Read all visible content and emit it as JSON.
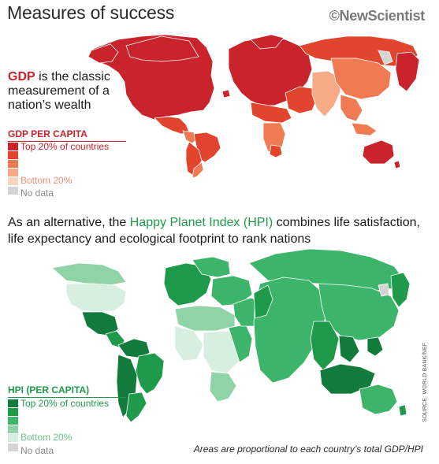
{
  "title": "Measures of success",
  "brand": "©NewScientist",
  "gdp_intro": {
    "highlight": "GDP",
    "text": " is the classic measurement of a nation’s wealth"
  },
  "gdp_legend": {
    "title": "GDP PER CAPITA",
    "top_label": "Top 20% of countries",
    "bottom_label": "Bottom 20%",
    "nodata_label": "No data",
    "colors": [
      "#c9232b",
      "#e2452d",
      "#f07a52",
      "#f7aa86",
      "#fbd5c2"
    ],
    "nodata_color": "#d5d5d5"
  },
  "hpi_intro": {
    "before": "As an alternative, the ",
    "highlight": "Happy Planet Index (HPI)",
    "after": " combines life satisfaction, life expectancy and ecological footprint to rank nations"
  },
  "hpi_legend": {
    "title": "HPI (PER CAPITA)",
    "top_label": "Top 20% of countries",
    "bottom_label": "Bottom 20%",
    "nodata_label": "No data",
    "colors": [
      "#127a3a",
      "#1f9a4a",
      "#3cb56a",
      "#8fd3a6",
      "#d7efde"
    ],
    "nodata_color": "#d5d5d5"
  },
  "footnote": "Areas are proportional to each country’s total GDP/HPI",
  "source": "SOURCE: WORLD BANK/NEF"
}
